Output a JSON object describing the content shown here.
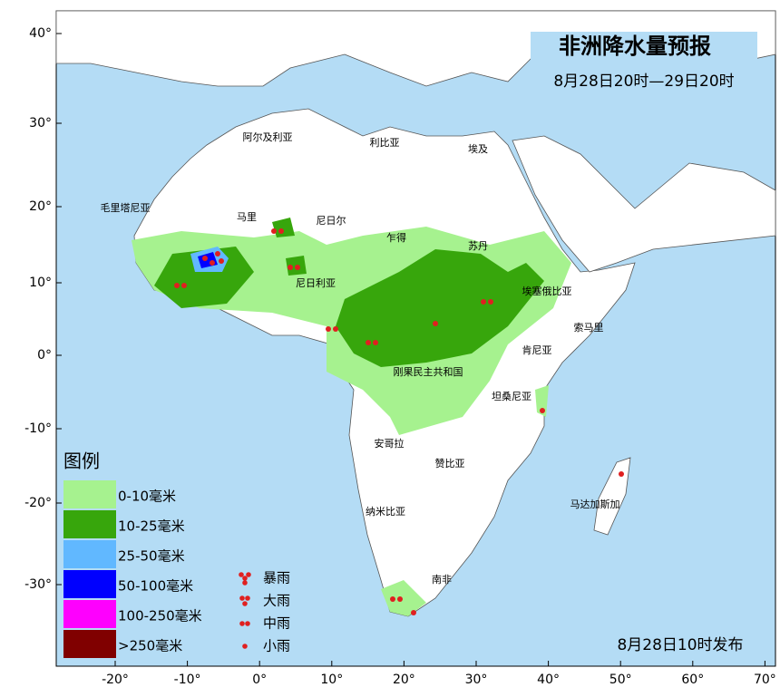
{
  "title": "非洲降水量预报",
  "subtitle": "8月28日20时—29日20时",
  "issued": "8月28日10时发布",
  "lat_labels": [
    "40°",
    "30°",
    "20°",
    "10°",
    "0°",
    "-10°",
    "-20°",
    "-30°"
  ],
  "lon_labels": [
    "-20°",
    "-10°",
    "0°",
    "10°",
    "20°",
    "30°",
    "40°",
    "50°",
    "60°",
    "70°"
  ],
  "countries": [
    "阿尔及利亚",
    "利比亚",
    "埃及",
    "毛里塔尼亚",
    "马里",
    "尼日尔",
    "乍得",
    "苏丹",
    "尼日利亚",
    "埃塞俄比亚",
    "索马里",
    "肯尼亚",
    "刚果民主共和国",
    "坦桑尼亚",
    "安哥拉",
    "赞比亚",
    "纳米比亚",
    "南非",
    "马达加斯加"
  ],
  "legend": {
    "title": "图例",
    "items": [
      "0-10毫米",
      "10-25毫米",
      "25-50毫米",
      "50-100毫米",
      "100-250毫米",
      ">250毫米"
    ],
    "colors": [
      "#a6f28f",
      "#37a60c",
      "#61b8ff",
      "#0000fe",
      "#fe00fe",
      "#800000"
    ]
  },
  "symbols": [
    "暴雨",
    "大雨",
    "中雨",
    "小雨"
  ]
}
